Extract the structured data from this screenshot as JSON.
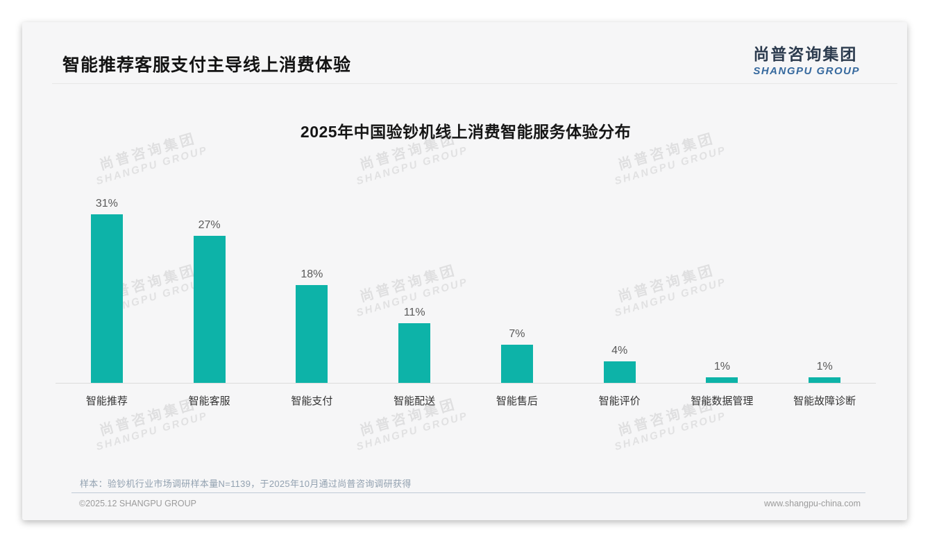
{
  "header": {
    "title": "智能推荐客服支付主导线上消费体验"
  },
  "logo": {
    "cn": "尚普咨询集团",
    "en": "SHANGPU GROUP"
  },
  "chart_data": {
    "type": "bar",
    "title": "2025年中国验钞机线上消费智能服务体验分布",
    "categories": [
      "智能推荐",
      "智能客服",
      "智能支付",
      "智能配送",
      "智能售后",
      "智能评价",
      "智能数据管理",
      "智能故障诊断"
    ],
    "values": [
      31,
      27,
      18,
      11,
      7,
      4,
      1,
      1
    ],
    "value_labels": [
      "31%",
      "27%",
      "18%",
      "11%",
      "7%",
      "4%",
      "1%",
      "1%"
    ],
    "unit": "%",
    "bar_color": "#0db3a8",
    "ylim": [
      0,
      35
    ],
    "grid": false,
    "legend": false,
    "xlabel": "",
    "ylabel": ""
  },
  "watermark": {
    "cn": "尚普咨询集团",
    "en": "SHANGPU GROUP",
    "grid_cols": [
      183,
      558,
      930
    ],
    "grid_rows": [
      193,
      383,
      576
    ]
  },
  "footnote": "样本：验钞机行业市场调研样本量N=1139，于2025年10月通过尚普咨询调研获得",
  "footer": {
    "left": "©2025.12 SHANGPU GROUP",
    "right": "www.shangpu-china.com"
  }
}
